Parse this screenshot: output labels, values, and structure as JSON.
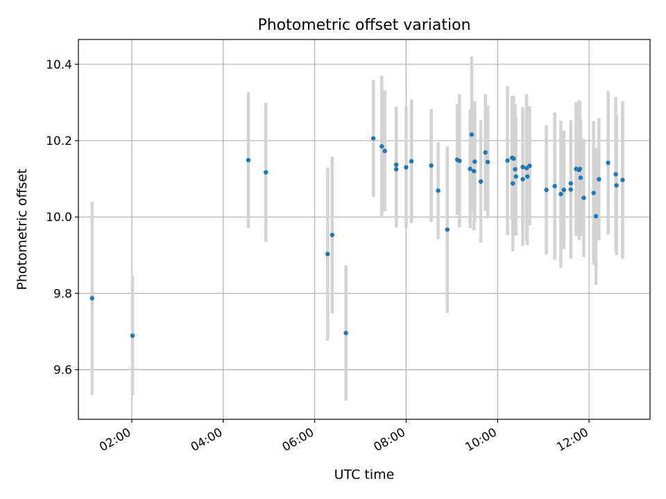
{
  "chart_data": {
    "type": "scatter",
    "title": "Photometric offset variation",
    "xlabel": "UTC time",
    "ylabel": "Photometric offset",
    "x_unit": "UTC hours",
    "xlim": [
      "00:50",
      "13:20"
    ],
    "ylim": [
      9.47,
      10.465
    ],
    "x_ticks": [
      "02:00",
      "04:00",
      "06:00",
      "08:00",
      "10:00",
      "12:00"
    ],
    "y_ticks": [
      "9.6",
      "9.8",
      "10.0",
      "10.2",
      "10.4"
    ],
    "grid": true,
    "legend": "none",
    "colors": {
      "point": "#1f77b4",
      "errorbar": "#d3d3d3",
      "grid": "#b0b0b0",
      "frame": "#000000"
    },
    "series": [
      {
        "x": [
          "01:08",
          "02:01",
          "04:33",
          "04:56",
          "06:17",
          "06:23",
          "06:41",
          "07:17",
          "07:28",
          "07:32",
          "07:47",
          "07:47",
          "08:00",
          "08:07",
          "08:33",
          "08:42",
          "08:54",
          "09:07",
          "09:10",
          "09:24",
          "09:26",
          "09:29",
          "09:30",
          "09:38",
          "09:44",
          "09:47",
          "10:13",
          "10:19",
          "10:20",
          "10:21",
          "10:23",
          "10:24",
          "10:33",
          "10:33",
          "10:38",
          "10:39",
          "10:42",
          "11:04",
          "11:15",
          "11:23",
          "11:27",
          "11:36",
          "11:36",
          "11:43",
          "11:47",
          "11:48",
          "11:49",
          "11:53",
          "12:06",
          "12:09",
          "12:13",
          "12:25",
          "12:35",
          "12:36",
          "12:44"
        ],
        "y": [
          9.787,
          9.689,
          10.149,
          10.117,
          9.903,
          9.953,
          9.696,
          10.206,
          10.185,
          10.173,
          10.137,
          10.125,
          10.13,
          10.146,
          10.135,
          10.069,
          9.967,
          10.15,
          10.147,
          10.126,
          10.216,
          10.12,
          10.145,
          10.093,
          10.169,
          10.144,
          10.148,
          10.155,
          10.088,
          10.153,
          10.125,
          10.106,
          10.131,
          10.099,
          10.128,
          10.106,
          10.134,
          10.071,
          10.081,
          10.06,
          10.071,
          10.072,
          10.088,
          10.126,
          10.123,
          10.126,
          10.103,
          10.05,
          10.063,
          10.002,
          10.099,
          10.142,
          10.112,
          10.083,
          10.097
        ],
        "yerr": [
          0.253,
          0.157,
          0.178,
          0.182,
          0.227,
          0.205,
          0.177,
          0.153,
          0.185,
          0.158,
          0.152,
          0.153,
          0.16,
          0.162,
          0.148,
          0.127,
          0.218,
          0.145,
          0.174,
          0.155,
          0.205,
          0.155,
          0.158,
          0.16,
          0.153,
          0.148,
          0.195,
          0.163,
          0.178,
          0.163,
          0.17,
          0.155,
          0.157,
          0.175,
          0.193,
          0.18,
          0.156,
          0.17,
          0.193,
          0.193,
          0.155,
          0.182,
          0.163,
          0.175,
          0.183,
          0.176,
          0.153,
          0.155,
          0.188,
          0.18,
          0.16,
          0.188,
          0.203,
          0.183,
          0.207
        ]
      }
    ]
  }
}
